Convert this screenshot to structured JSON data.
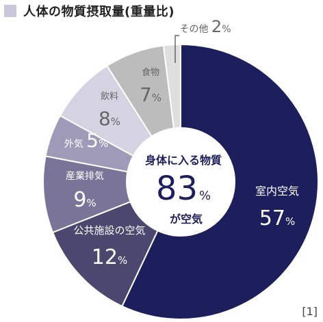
{
  "title": "人体の物質摂取量(重量比)",
  "reference": "[1]",
  "colors": {
    "title_square": "#c9c7d9",
    "slices": [
      "#1d1f5c",
      "#4b476e",
      "#7a7598",
      "#9e9ab8",
      "#d5d2e2",
      "#bcbcbc",
      "#dedede"
    ],
    "inner_text": "#1d1f5c"
  },
  "center": {
    "line1": "身体に入る物質",
    "value": "83",
    "unit": "%",
    "line3": "が空気"
  },
  "chart_data": {
    "type": "pie",
    "title": "人体の物質摂取量(重量比)",
    "unit": "%",
    "slices": [
      {
        "label": "室内空気",
        "value": 57
      },
      {
        "label": "公共施設の空気",
        "value": 12
      },
      {
        "label": "産業排気",
        "value": 9
      },
      {
        "label": "外気",
        "value": 5
      },
      {
        "label": "飲料",
        "value": 8
      },
      {
        "label": "食物",
        "value": 7
      },
      {
        "label": "その他",
        "value": 2
      }
    ]
  }
}
